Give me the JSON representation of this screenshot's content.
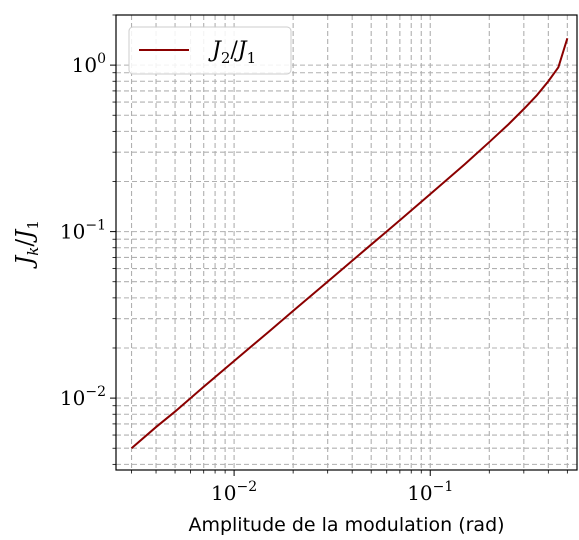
{
  "chart_data": {
    "type": "line",
    "title": "",
    "xlabel": "Amplitude de la modulation (rad)",
    "ylabel": {
      "base": "J",
      "sub": "k",
      "div": "/",
      "base2": "J",
      "sub2": "1"
    },
    "xscale": "log",
    "yscale": "log",
    "xlim": [
      0.0025,
      0.56
    ],
    "ylim": [
      0.0037,
      2.0
    ],
    "grid": true,
    "legend_position": "top-left",
    "xticks": [
      {
        "value": 0.01,
        "base": "10",
        "exp": "−2"
      },
      {
        "value": 0.1,
        "base": "10",
        "exp": "−1"
      }
    ],
    "yticks": [
      {
        "value": 0.01,
        "base": "10",
        "exp": "−2"
      },
      {
        "value": 0.1,
        "base": "10",
        "exp": "−1"
      },
      {
        "value": 1,
        "base": "10",
        "exp": "0"
      }
    ],
    "series": [
      {
        "name": {
          "base": "J",
          "sub": "2",
          "div": "/",
          "base2": "J",
          "sub2": "1"
        },
        "color": "#8b0000",
        "x": [
          0.003,
          0.004,
          0.005,
          0.007,
          0.01,
          0.015,
          0.02,
          0.03,
          0.05,
          0.07,
          0.1,
          0.15,
          0.2,
          0.25,
          0.3,
          0.35,
          0.4,
          0.45,
          0.5
        ],
        "y": [
          0.005,
          0.0067,
          0.0083,
          0.0117,
          0.0167,
          0.025,
          0.0334,
          0.0501,
          0.0836,
          0.117,
          0.168,
          0.254,
          0.345,
          0.44,
          0.545,
          0.66,
          0.8,
          0.97,
          1.45
        ]
      }
    ]
  }
}
